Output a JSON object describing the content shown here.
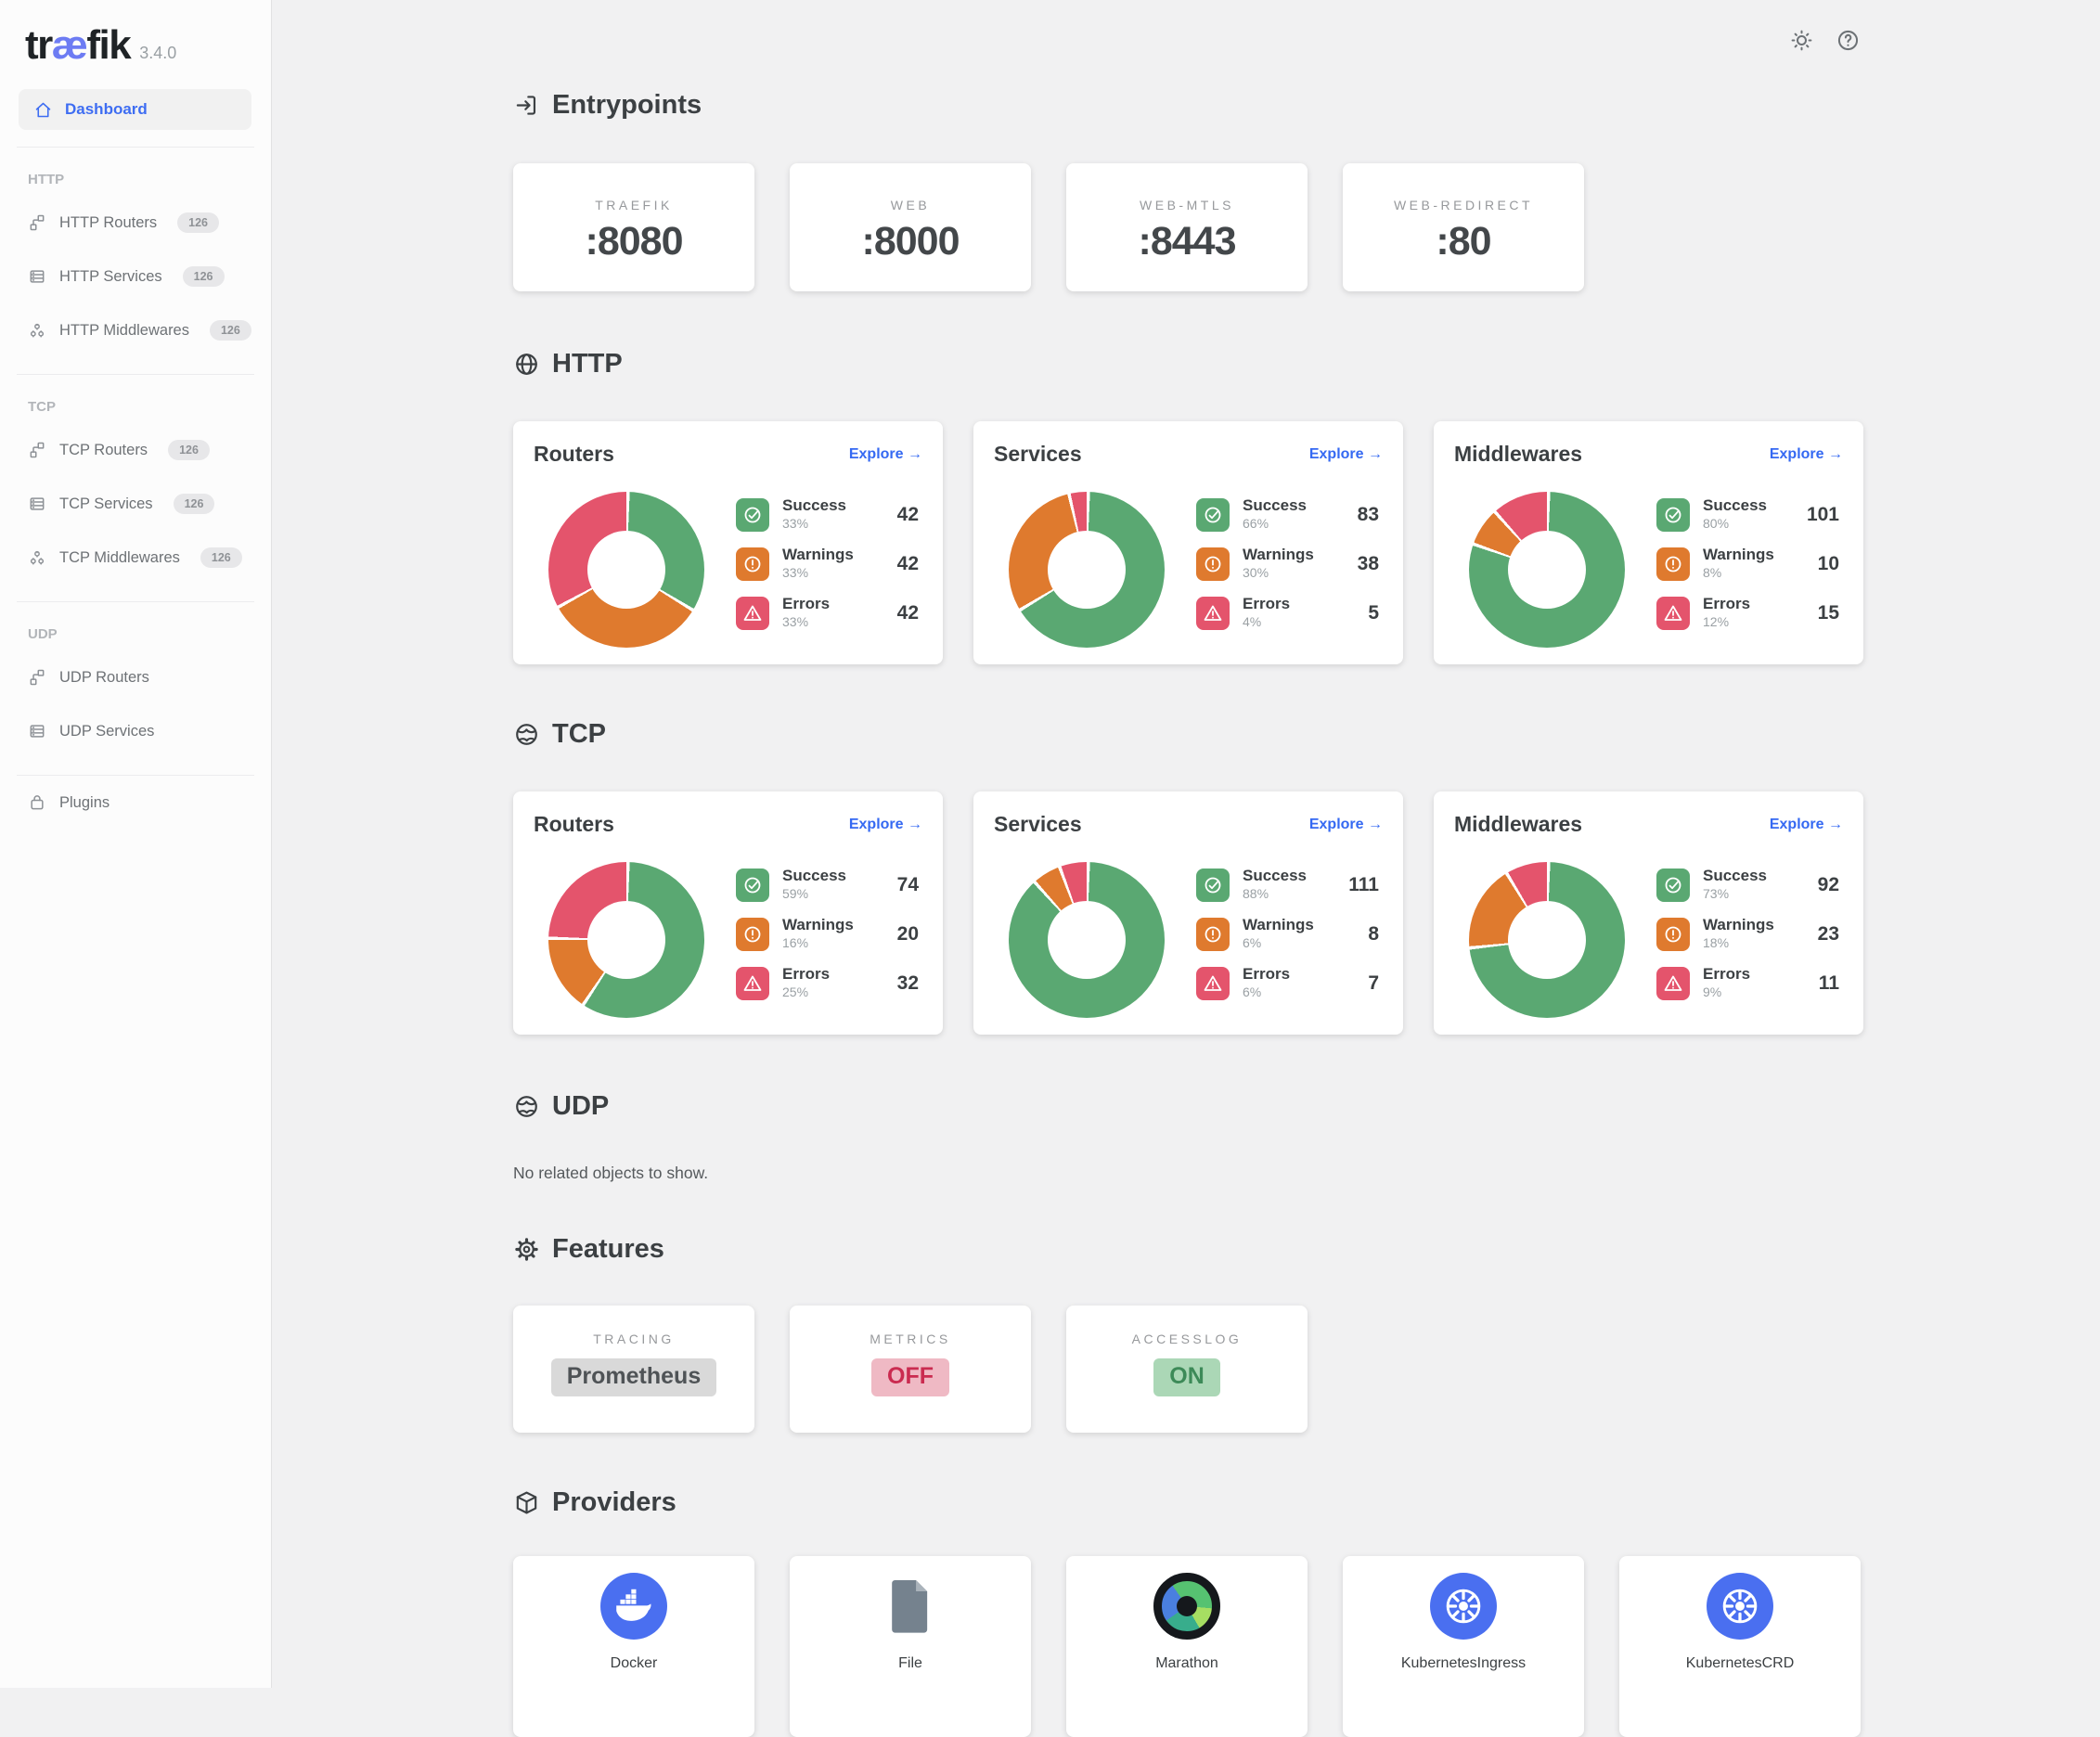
{
  "app": {
    "brand": {
      "pre": "tr",
      "mid": "æ",
      "post": "fik"
    },
    "version": "3.4.0"
  },
  "topbar": {
    "icons": [
      {
        "name": "theme-toggle-sun-icon"
      },
      {
        "name": "help-icon"
      }
    ]
  },
  "sidebar": {
    "dashboard_label": "Dashboard",
    "groups": [
      {
        "label": "HTTP",
        "items": [
          {
            "label": "HTTP Routers",
            "badge": "126",
            "icon": "router-icon"
          },
          {
            "label": "HTTP Services",
            "badge": "126",
            "icon": "service-icon"
          },
          {
            "label": "HTTP Middlewares",
            "badge": "126",
            "icon": "middleware-icon"
          }
        ]
      },
      {
        "label": "TCP",
        "items": [
          {
            "label": "TCP Routers",
            "badge": "126",
            "icon": "router-icon"
          },
          {
            "label": "TCP Services",
            "badge": "126",
            "icon": "service-icon"
          },
          {
            "label": "TCP Middlewares",
            "badge": "126",
            "icon": "middleware-icon"
          }
        ]
      },
      {
        "label": "UDP",
        "items": [
          {
            "label": "UDP Routers",
            "badge": null,
            "icon": "router-icon"
          },
          {
            "label": "UDP Services",
            "badge": null,
            "icon": "service-icon"
          }
        ]
      }
    ],
    "footer": [
      {
        "label": "Plugins",
        "badge": null,
        "icon": "plugins-icon"
      }
    ]
  },
  "entrypoints": {
    "title": "Entrypoints",
    "icon": "login-icon",
    "cards": [
      {
        "name": "TRAEFIK",
        "port": ":8080"
      },
      {
        "name": "WEB",
        "port": ":8000"
      },
      {
        "name": "WEB-MTLS",
        "port": ":8443"
      },
      {
        "name": "WEB-REDIRECT",
        "port": ":80"
      }
    ]
  },
  "http": {
    "title": "HTTP",
    "icon": "globe-icon",
    "cards": [
      {
        "title": "Routers",
        "explore": "Explore",
        "stats": [
          {
            "label": "Success",
            "pct": 33,
            "pct_label": "33%",
            "value": "42"
          },
          {
            "label": "Warnings",
            "pct": 33,
            "pct_label": "33%",
            "value": "42"
          },
          {
            "label": "Errors",
            "pct": 33,
            "pct_label": "33%",
            "value": "42"
          }
        ]
      },
      {
        "title": "Services",
        "explore": "Explore",
        "stats": [
          {
            "label": "Success",
            "pct": 66,
            "pct_label": "66%",
            "value": "83"
          },
          {
            "label": "Warnings",
            "pct": 30,
            "pct_label": "30%",
            "value": "38"
          },
          {
            "label": "Errors",
            "pct": 4,
            "pct_label": "4%",
            "value": "5"
          }
        ]
      },
      {
        "title": "Middlewares",
        "explore": "Explore",
        "stats": [
          {
            "label": "Success",
            "pct": 80,
            "pct_label": "80%",
            "value": "101"
          },
          {
            "label": "Warnings",
            "pct": 8,
            "pct_label": "8%",
            "value": "10"
          },
          {
            "label": "Errors",
            "pct": 12,
            "pct_label": "12%",
            "value": "15"
          }
        ]
      }
    ]
  },
  "tcp": {
    "title": "TCP",
    "icon": "globe-alt-icon",
    "cards": [
      {
        "title": "Routers",
        "explore": "Explore",
        "stats": [
          {
            "label": "Success",
            "pct": 59,
            "pct_label": "59%",
            "value": "74"
          },
          {
            "label": "Warnings",
            "pct": 16,
            "pct_label": "16%",
            "value": "20"
          },
          {
            "label": "Errors",
            "pct": 25,
            "pct_label": "25%",
            "value": "32"
          }
        ]
      },
      {
        "title": "Services",
        "explore": "Explore",
        "stats": [
          {
            "label": "Success",
            "pct": 88,
            "pct_label": "88%",
            "value": "111"
          },
          {
            "label": "Warnings",
            "pct": 6,
            "pct_label": "6%",
            "value": "8"
          },
          {
            "label": "Errors",
            "pct": 6,
            "pct_label": "6%",
            "value": "7"
          }
        ]
      },
      {
        "title": "Middlewares",
        "explore": "Explore",
        "stats": [
          {
            "label": "Success",
            "pct": 73,
            "pct_label": "73%",
            "value": "92"
          },
          {
            "label": "Warnings",
            "pct": 18,
            "pct_label": "18%",
            "value": "23"
          },
          {
            "label": "Errors",
            "pct": 9,
            "pct_label": "9%",
            "value": "11"
          }
        ]
      }
    ]
  },
  "udp": {
    "title": "UDP",
    "icon": "globe-alt-icon",
    "empty_message": "No related objects to show."
  },
  "features": {
    "title": "Features",
    "icon": "gear-icon",
    "cards": [
      {
        "name": "TRACING",
        "value": "Prometheus",
        "state": "neutral"
      },
      {
        "name": "METRICS",
        "value": "OFF",
        "state": "off"
      },
      {
        "name": "ACCESSLOG",
        "value": "ON",
        "state": "on"
      }
    ]
  },
  "providers": {
    "title": "Providers",
    "icon": "box-icon",
    "cards": [
      {
        "label": "Docker",
        "icon": "docker-icon"
      },
      {
        "label": "File",
        "icon": "file-icon"
      },
      {
        "label": "Marathon",
        "icon": "marathon-icon"
      },
      {
        "label": "KubernetesIngress",
        "icon": "kubernetes-icon"
      },
      {
        "label": "KubernetesCRD",
        "icon": "kubernetes-icon"
      }
    ]
  },
  "colors": {
    "success": "#5AA872",
    "warning": "#DF7A2E",
    "error": "#E4546C",
    "accent": "#3569F2"
  }
}
